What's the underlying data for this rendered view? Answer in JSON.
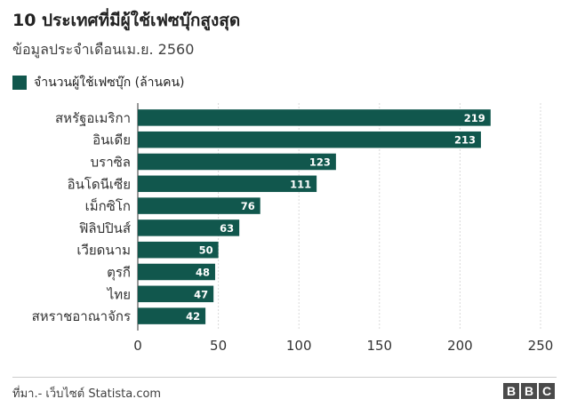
{
  "header": {
    "title": "10 ประเทศที่มีผู้ใช้เฟซบุ๊กสูงสุด",
    "subtitle": "ข้อมูลประจำเดือนเม.ย. 2560"
  },
  "legend": {
    "label": "จำนวนผู้ใช้เฟซบุ๊ก (ล้านคน)"
  },
  "footer": {
    "source": "ที่มา.- เว็บไซต์ Statista.com",
    "logo_letters": [
      "B",
      "B",
      "C"
    ]
  },
  "colors": {
    "bar": "#11574d",
    "axis_text": "#333333",
    "grid": "#d9d9d9",
    "swatch": "#11574d"
  },
  "chart_data": {
    "type": "bar",
    "orientation": "horizontal",
    "categories": [
      "สหรัฐอเมริกา",
      "อินเดีย",
      "บราซิล",
      "อินโดนีเซีย",
      "เม็กซิโก",
      "ฟิลิปปินส์",
      "เวียดนาม",
      "ตุรกี",
      "ไทย",
      "สหราชอาณาจักร"
    ],
    "series": [
      {
        "name": "จำนวนผู้ใช้เฟซบุ๊ก (ล้านคน)",
        "values": [
          219,
          213,
          123,
          111,
          76,
          63,
          50,
          48,
          47,
          42
        ]
      }
    ],
    "xlim": [
      0,
      250
    ],
    "xticks": [
      0,
      50,
      100,
      150,
      200,
      250
    ],
    "grid": true,
    "data_labels": true,
    "legend_position": "top-left"
  }
}
